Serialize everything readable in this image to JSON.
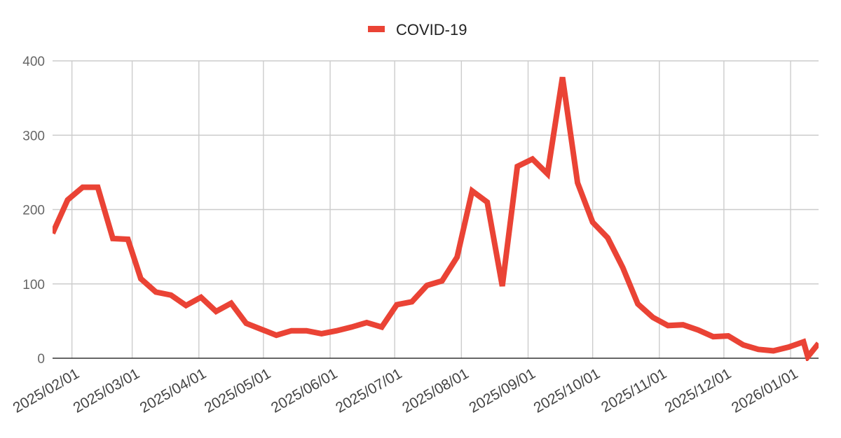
{
  "chart_data": {
    "type": "line",
    "legend_position": "top-center",
    "grid": true,
    "ylim": [
      0,
      400
    ],
    "yticks": [
      0,
      100,
      200,
      300,
      400
    ],
    "xticks": [
      "2025/02/01",
      "2025/03/01",
      "2025/04/01",
      "2025/05/01",
      "2025/06/01",
      "2025/07/01",
      "2025/08/01",
      "2025/09/01",
      "2025/10/01",
      "2025/11/01",
      "2025/12/01",
      "2026/01/01"
    ],
    "x": [
      "2025/01/23",
      "2025/01/30",
      "2025/02/06",
      "2025/02/13",
      "2025/02/20",
      "2025/02/27",
      "2025/03/05",
      "2025/03/12",
      "2025/03/19",
      "2025/03/26",
      "2025/04/02",
      "2025/04/09",
      "2025/04/16",
      "2025/04/23",
      "2025/04/30",
      "2025/05/07",
      "2025/05/14",
      "2025/05/21",
      "2025/05/28",
      "2025/06/04",
      "2025/06/11",
      "2025/06/18",
      "2025/06/25",
      "2025/07/02",
      "2025/07/09",
      "2025/07/16",
      "2025/07/23",
      "2025/07/30",
      "2025/08/06",
      "2025/08/13",
      "2025/08/20",
      "2025/08/27",
      "2025/09/03",
      "2025/09/10",
      "2025/09/17",
      "2025/09/24",
      "2025/10/01",
      "2025/10/08",
      "2025/10/15",
      "2025/10/22",
      "2025/10/29",
      "2025/11/05",
      "2025/11/12",
      "2025/11/19",
      "2025/11/26",
      "2025/12/03",
      "2025/12/10",
      "2025/12/17",
      "2025/12/24",
      "2025/12/31",
      "2026/01/07",
      "2026/01/09",
      "2026/01/14"
    ],
    "series": [
      {
        "name": "COVID-19",
        "color": "#ea4335",
        "values": [
          168,
          213,
          230,
          230,
          161,
          160,
          107,
          89,
          85,
          71,
          82,
          63,
          74,
          47,
          39,
          31,
          37,
          37,
          33,
          37,
          42,
          48,
          42,
          72,
          76,
          98,
          104,
          136,
          225,
          210,
          97,
          258,
          268,
          248,
          378,
          236,
          183,
          162,
          122,
          73,
          55,
          44,
          45,
          38,
          29,
          30,
          18,
          12,
          10,
          15,
          22,
          2,
          20
        ]
      }
    ]
  }
}
